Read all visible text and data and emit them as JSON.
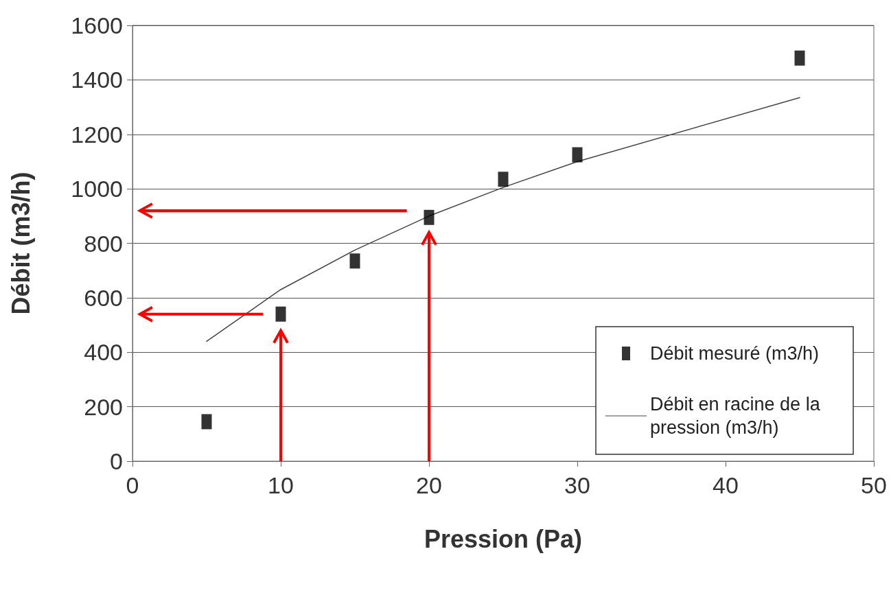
{
  "chart_data": {
    "type": "scatter",
    "xlabel": "Pression (Pa)",
    "ylabel": "Débit (m3/h)",
    "x": [
      5,
      10,
      15,
      20,
      25,
      30,
      45
    ],
    "series": [
      {
        "name": "Débit mesuré (m3/h)",
        "color": "#000000",
        "marker": "square",
        "values": [
          145,
          540,
          735,
          895,
          1035,
          1125,
          1480
        ]
      },
      {
        "name": "Débit en racine de la pression (m3/h)",
        "type": "line",
        "color": "#444444",
        "marker": "none",
        "line_style": "solid",
        "values": [
          440,
          630,
          775,
          900,
          1005,
          1100,
          1335
        ]
      }
    ],
    "xlim": [
      0,
      50
    ],
    "xticks": [
      0,
      10,
      20,
      30,
      40,
      50
    ],
    "ylim": [
      0,
      1600
    ],
    "yticks": [
      0,
      200,
      400,
      600,
      800,
      1000,
      1200,
      1400,
      1600
    ],
    "grid": "y",
    "legend": "bottom right"
  }
}
